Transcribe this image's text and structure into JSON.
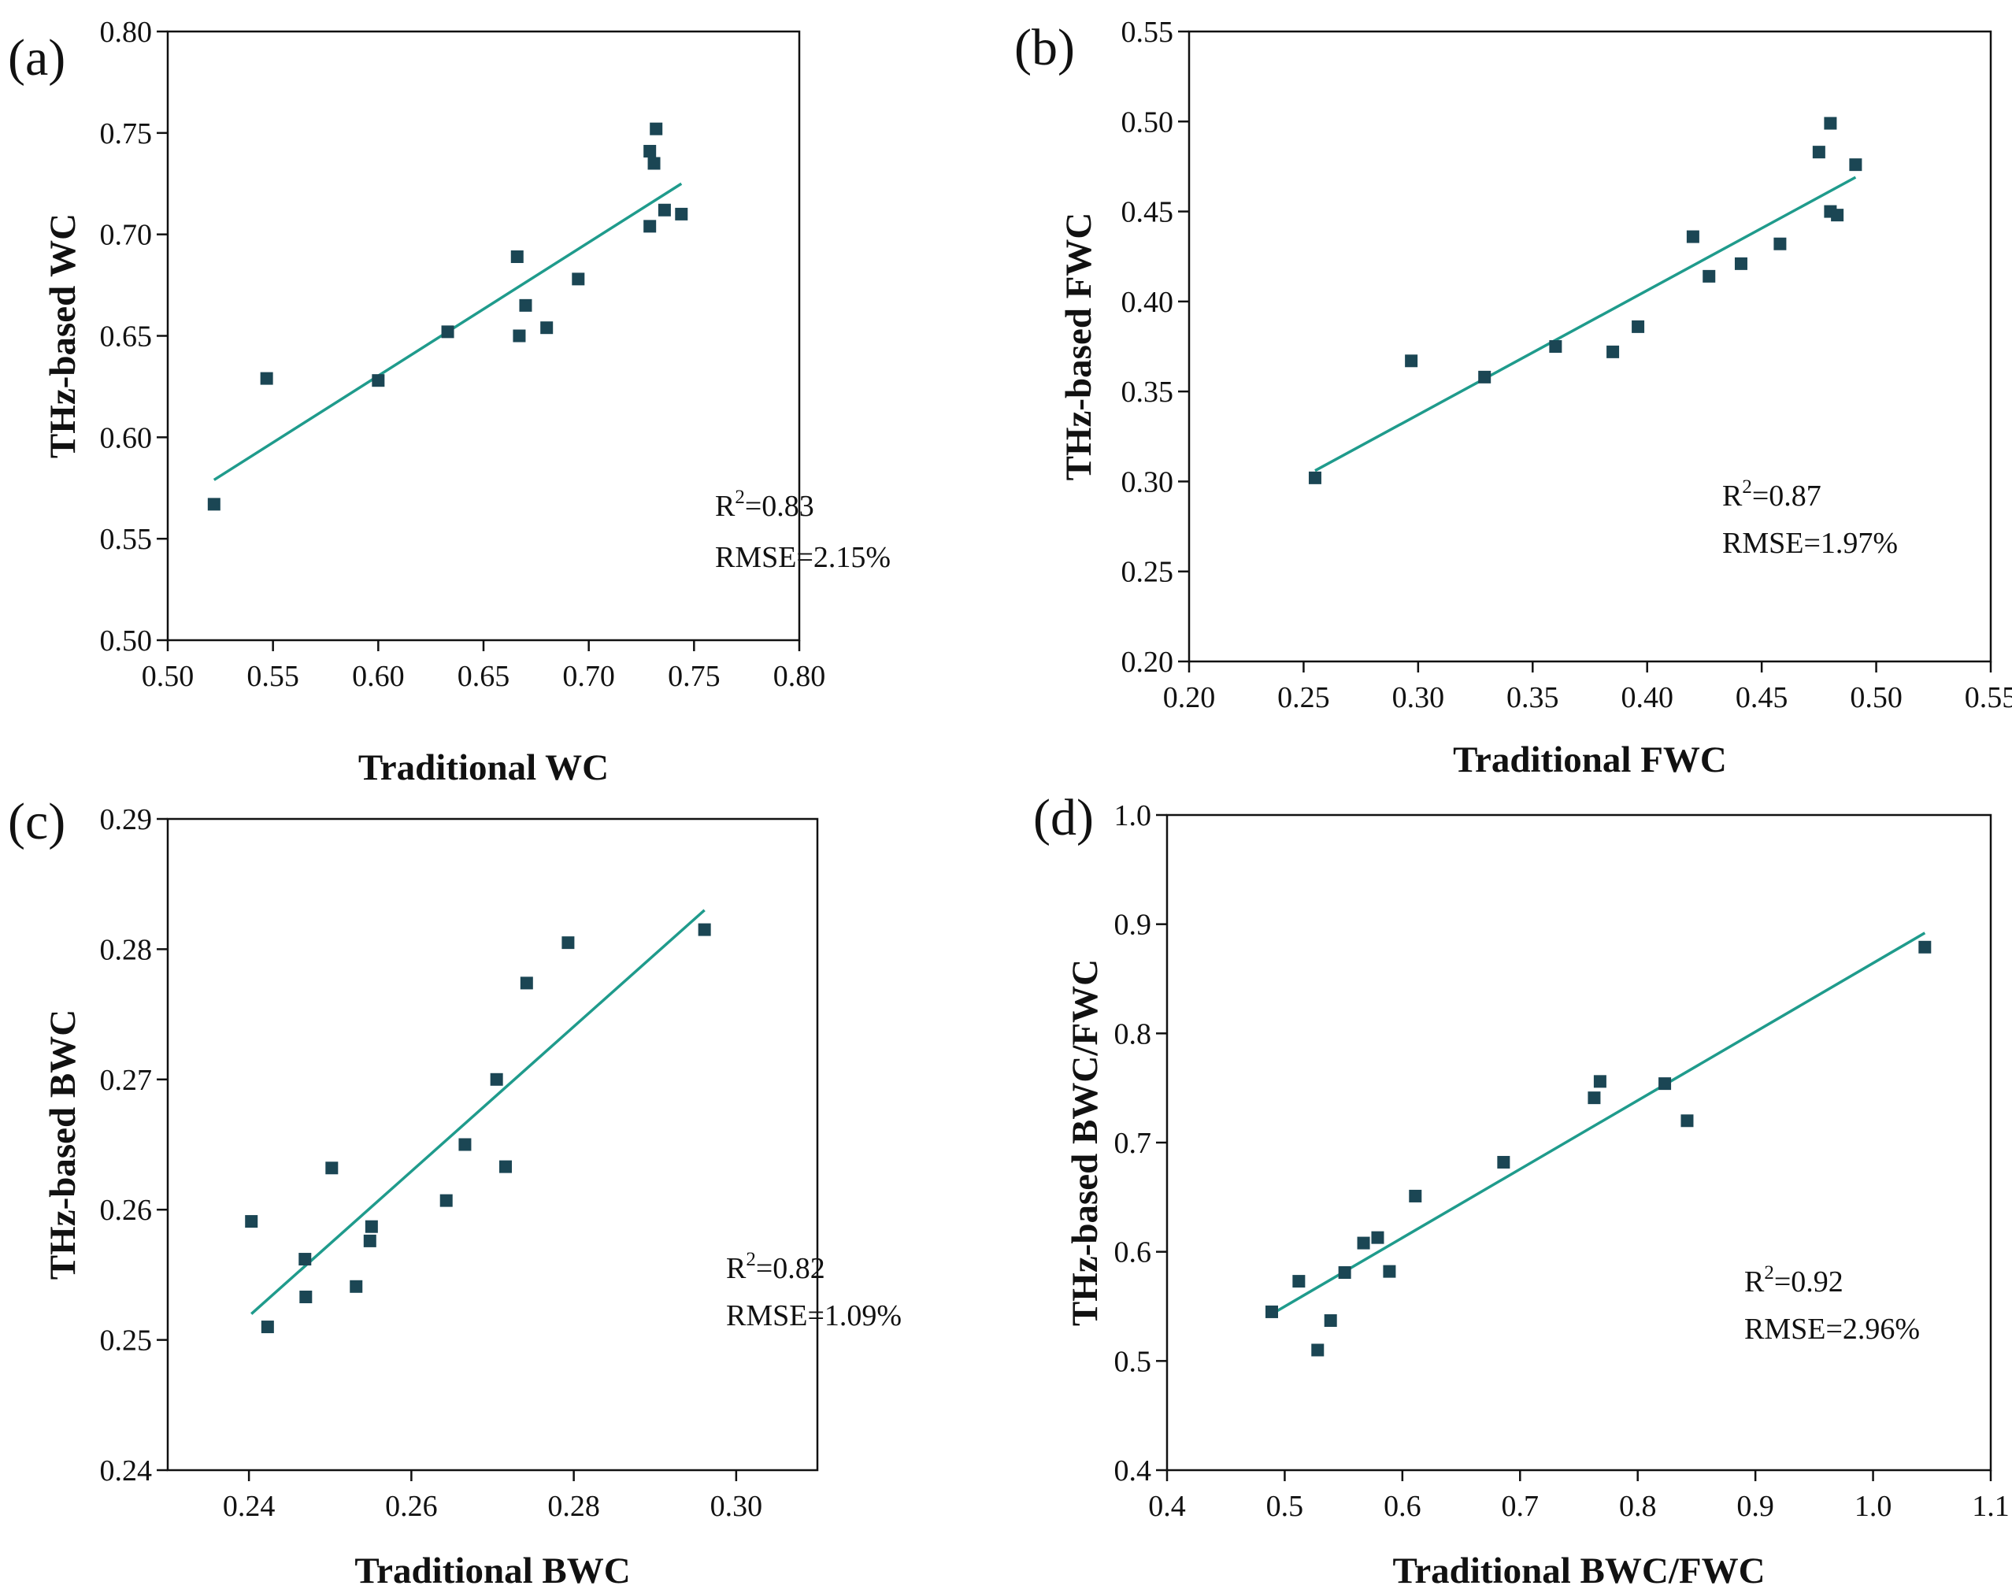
{
  "colors": {
    "point": "#1b4654",
    "fit_line": "#1f9b8c",
    "axis": "#111111",
    "background": "#ffffff"
  },
  "chart_data": [
    {
      "id": "a",
      "type": "scatter",
      "panel_label": "(a)",
      "xlabel": "Traditional WC",
      "ylabel": "THz-based WC",
      "xlim": [
        0.5,
        0.8
      ],
      "ylim": [
        0.5,
        0.8
      ],
      "xticks": [
        "0.50",
        "0.55",
        "0.60",
        "0.65",
        "0.70",
        "0.75",
        "0.80"
      ],
      "yticks": [
        "0.50",
        "0.55",
        "0.60",
        "0.65",
        "0.70",
        "0.75",
        "0.80"
      ],
      "points": [
        [
          0.522,
          0.567
        ],
        [
          0.547,
          0.629
        ],
        [
          0.6,
          0.628
        ],
        [
          0.633,
          0.652
        ],
        [
          0.666,
          0.689
        ],
        [
          0.667,
          0.65
        ],
        [
          0.67,
          0.665
        ],
        [
          0.68,
          0.654
        ],
        [
          0.695,
          0.678
        ],
        [
          0.729,
          0.741
        ],
        [
          0.729,
          0.704
        ],
        [
          0.731,
          0.735
        ],
        [
          0.732,
          0.752
        ],
        [
          0.736,
          0.712
        ],
        [
          0.744,
          0.71
        ]
      ],
      "fit_line": [
        [
          0.522,
          0.579
        ],
        [
          0.744,
          0.725
        ]
      ],
      "r2_label": "R",
      "r2_exp": "2",
      "r2_value": "=0.83",
      "rmse": "RMSE=2.15%"
    },
    {
      "id": "b",
      "type": "scatter",
      "panel_label": "(b)",
      "xlabel": "Traditional FWC",
      "ylabel": "THz-based FWC",
      "xlim": [
        0.2,
        0.55
      ],
      "ylim": [
        0.2,
        0.55
      ],
      "xticks": [
        "0.20",
        "0.25",
        "0.30",
        "0.35",
        "0.40",
        "0.45",
        "0.50",
        "0.55"
      ],
      "yticks": [
        "0.20",
        "0.25",
        "0.30",
        "0.35",
        "0.40",
        "0.45",
        "0.50",
        "0.55"
      ],
      "points": [
        [
          0.255,
          0.302
        ],
        [
          0.297,
          0.367
        ],
        [
          0.329,
          0.358
        ],
        [
          0.36,
          0.375
        ],
        [
          0.385,
          0.372
        ],
        [
          0.396,
          0.386
        ],
        [
          0.42,
          0.436
        ],
        [
          0.427,
          0.414
        ],
        [
          0.441,
          0.421
        ],
        [
          0.458,
          0.432
        ],
        [
          0.475,
          0.483
        ],
        [
          0.48,
          0.499
        ],
        [
          0.48,
          0.45
        ],
        [
          0.483,
          0.448
        ],
        [
          0.491,
          0.476
        ]
      ],
      "fit_line": [
        [
          0.255,
          0.306
        ],
        [
          0.491,
          0.469
        ]
      ],
      "r2_label": "R",
      "r2_exp": "2",
      "r2_value": "=0.87",
      "rmse": "RMSE=1.97%"
    },
    {
      "id": "c",
      "type": "scatter",
      "panel_label": "(c)",
      "xlabel": "Traditional BWC",
      "ylabel": "THz-based BWC",
      "xlim": [
        0.23,
        0.31
      ],
      "ylim": [
        0.24,
        0.29
      ],
      "xticks": [
        "0.24",
        "0.26",
        "0.28",
        "0.30"
      ],
      "xtick_values": [
        0.24,
        0.26,
        0.28,
        0.3
      ],
      "yticks": [
        "0.24",
        "0.25",
        "0.26",
        "0.27",
        "0.28",
        "0.29"
      ],
      "points": [
        [
          0.2403,
          0.2591
        ],
        [
          0.2423,
          0.251
        ],
        [
          0.2469,
          0.2562
        ],
        [
          0.247,
          0.2533
        ],
        [
          0.2502,
          0.2632
        ],
        [
          0.2532,
          0.2541
        ],
        [
          0.2549,
          0.2576
        ],
        [
          0.2551,
          0.2587
        ],
        [
          0.2643,
          0.2607
        ],
        [
          0.2666,
          0.265
        ],
        [
          0.2705,
          0.27
        ],
        [
          0.2716,
          0.2633
        ],
        [
          0.2742,
          0.2774
        ],
        [
          0.2793,
          0.2805
        ],
        [
          0.2961,
          0.2815
        ]
      ],
      "fit_line": [
        [
          0.2403,
          0.252
        ],
        [
          0.2961,
          0.283
        ]
      ],
      "r2_label": "R",
      "r2_exp": "2",
      "r2_value": "=0.82",
      "rmse": "RMSE=1.09%"
    },
    {
      "id": "d",
      "type": "scatter",
      "panel_label": "(d)",
      "xlabel": "Traditional BWC/FWC",
      "ylabel": "THz-based BWC/FWC",
      "xlim": [
        0.4,
        1.1
      ],
      "ylim": [
        0.4,
        1.0
      ],
      "xticks": [
        "0.4",
        "0.5",
        "0.6",
        "0.7",
        "0.8",
        "0.9",
        "1.0",
        "1.1"
      ],
      "yticks": [
        "0.4",
        "0.5",
        "0.6",
        "0.7",
        "0.8",
        "0.9",
        "1.0"
      ],
      "points": [
        [
          0.489,
          0.545
        ],
        [
          0.512,
          0.573
        ],
        [
          0.528,
          0.51
        ],
        [
          0.539,
          0.537
        ],
        [
          0.551,
          0.581
        ],
        [
          0.567,
          0.608
        ],
        [
          0.579,
          0.613
        ],
        [
          0.589,
          0.582
        ],
        [
          0.611,
          0.651
        ],
        [
          0.686,
          0.682
        ],
        [
          0.763,
          0.741
        ],
        [
          0.768,
          0.756
        ],
        [
          0.823,
          0.754
        ],
        [
          0.842,
          0.72
        ],
        [
          1.044,
          0.879
        ]
      ],
      "fit_line": [
        [
          0.489,
          0.543
        ],
        [
          1.044,
          0.892
        ]
      ],
      "r2_label": "R",
      "r2_exp": "2",
      "r2_value": "=0.92",
      "rmse": "RMSE=2.96%"
    }
  ]
}
